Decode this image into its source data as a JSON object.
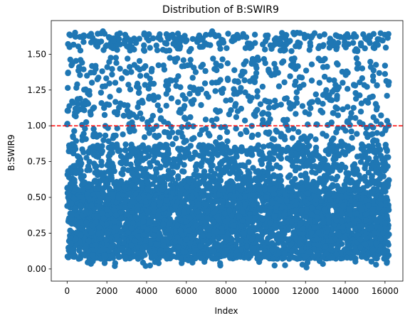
{
  "chart_data": {
    "type": "scatter",
    "title": "Distribution of B:SWIR9",
    "xlabel": "Index",
    "ylabel": "B:SWIR9",
    "xlim": [
      -800,
      16900
    ],
    "ylim": [
      -0.085,
      1.735
    ],
    "x_ticks": [
      0,
      2000,
      4000,
      6000,
      8000,
      10000,
      12000,
      14000,
      16000
    ],
    "y_ticks": [
      0.0,
      0.25,
      0.5,
      0.75,
      1.0,
      1.25,
      1.5
    ],
    "point_color": "#1f77b4",
    "reference_line": {
      "y": 1.0,
      "color": "#ff0000",
      "style": "dashed"
    },
    "n_points": 16200,
    "dense_band": {
      "min": 0.02,
      "max": 0.6
    },
    "sample_points": [
      [
        0,
        1.01
      ],
      [
        400,
        1.65
      ],
      [
        120,
        1.55
      ],
      [
        250,
        1.17
      ],
      [
        300,
        0.92
      ],
      [
        600,
        1.41
      ],
      [
        900,
        0.98
      ],
      [
        1300,
        1.12
      ],
      [
        1800,
        1.66
      ],
      [
        2000,
        1.15
      ],
      [
        2500,
        0.87
      ],
      [
        3000,
        1.37
      ],
      [
        3500,
        1.06
      ],
      [
        4100,
        1.26
      ],
      [
        4500,
        0.92
      ],
      [
        5200,
        1.63
      ],
      [
        5700,
        1.27
      ],
      [
        6200,
        1.06
      ],
      [
        6700,
        1.6
      ],
      [
        7300,
        1.66
      ],
      [
        7800,
        1.23
      ],
      [
        8200,
        0.81
      ],
      [
        8900,
        1.43
      ],
      [
        9500,
        1.1
      ],
      [
        10000,
        1.63
      ],
      [
        10500,
        1.4
      ],
      [
        11000,
        1.01
      ],
      [
        11700,
        1.34
      ],
      [
        12200,
        1.53
      ],
      [
        12700,
        1.3
      ],
      [
        13200,
        1.58
      ],
      [
        13600,
        1.12
      ],
      [
        14100,
        1.64
      ],
      [
        14600,
        1.4
      ],
      [
        15200,
        1.59
      ],
      [
        15600,
        0.95
      ],
      [
        16000,
        1.42
      ],
      [
        16100,
        0.83
      ],
      [
        8500,
        0.98
      ],
      [
        3200,
        0.73
      ],
      [
        12050,
        0.01
      ],
      [
        2400,
        0.02
      ],
      [
        7700,
        0.04
      ],
      [
        16100,
        0.05
      ],
      [
        6100,
        0.06
      ]
    ]
  }
}
